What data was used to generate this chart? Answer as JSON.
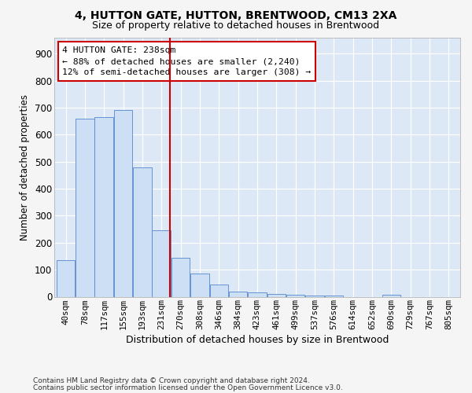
{
  "title1": "4, HUTTON GATE, HUTTON, BRENTWOOD, CM13 2XA",
  "title2": "Size of property relative to detached houses in Brentwood",
  "xlabel": "Distribution of detached houses by size in Brentwood",
  "ylabel": "Number of detached properties",
  "bar_labels": [
    "40sqm",
    "78sqm",
    "117sqm",
    "155sqm",
    "193sqm",
    "231sqm",
    "270sqm",
    "308sqm",
    "346sqm",
    "384sqm",
    "423sqm",
    "461sqm",
    "499sqm",
    "537sqm",
    "576sqm",
    "614sqm",
    "652sqm",
    "690sqm",
    "729sqm",
    "767sqm",
    "805sqm"
  ],
  "bar_values": [
    135,
    660,
    665,
    690,
    480,
    245,
    145,
    85,
    45,
    20,
    15,
    10,
    8,
    5,
    5,
    0,
    0,
    8,
    0,
    0,
    0
  ],
  "bar_color": "#ccdff5",
  "bar_edge_color": "#5588cc",
  "property_line_x": 5.45,
  "annotation_line1": "4 HUTTON GATE: 238sqm",
  "annotation_line2": "← 88% of detached houses are smaller (2,240)",
  "annotation_line3": "12% of semi-detached houses are larger (308) →",
  "annotation_box_color": "#ffffff",
  "annotation_box_edge": "#cc0000",
  "vline_color": "#cc0000",
  "footer1": "Contains HM Land Registry data © Crown copyright and database right 2024.",
  "footer2": "Contains public sector information licensed under the Open Government Licence v3.0.",
  "ylim": [
    0,
    960
  ],
  "ytick_max": 900,
  "ytick_step": 100,
  "background_color": "#dce8f5",
  "grid_color": "#ffffff",
  "fig_facecolor": "#f5f5f5"
}
